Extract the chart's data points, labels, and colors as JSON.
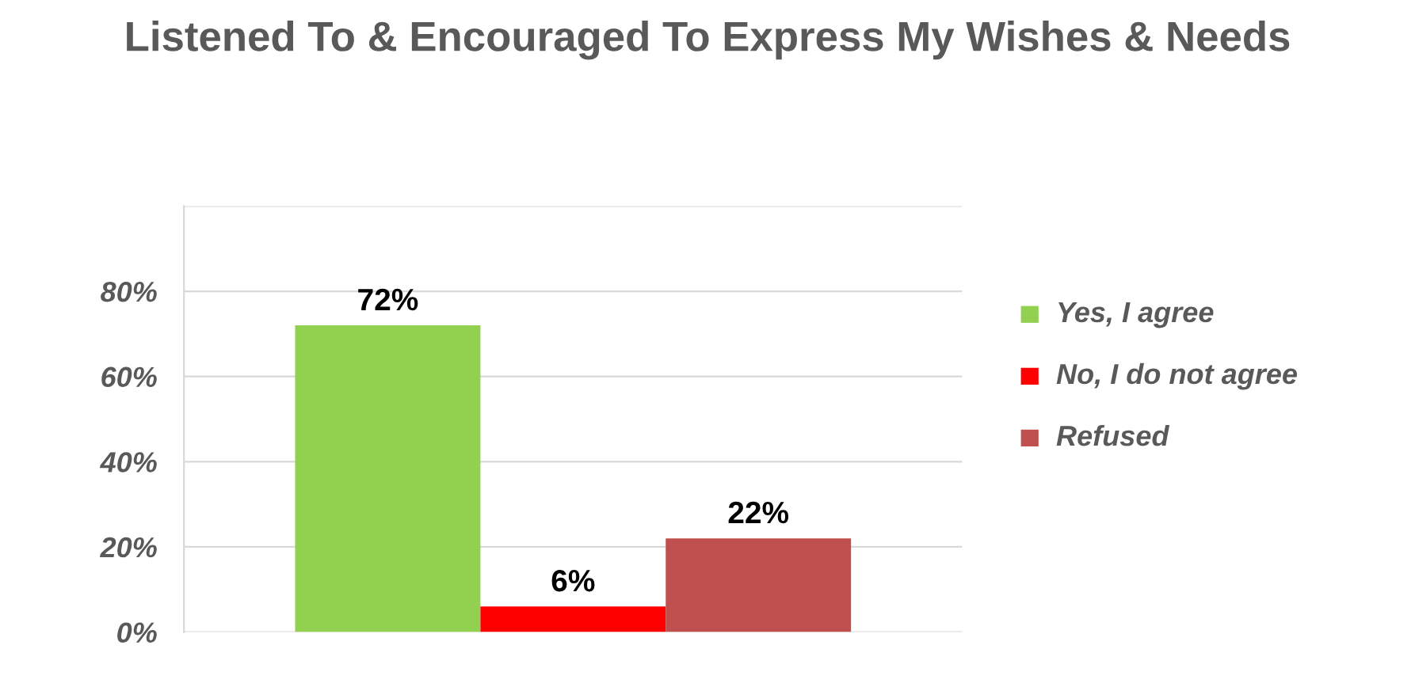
{
  "chart_data": {
    "type": "bar",
    "title": "Listened To & Encouraged To Express My Wishes & Needs",
    "categories": [
      null
    ],
    "series": [
      {
        "name": "Yes, I agree",
        "color": "#92d050",
        "values": [
          72
        ],
        "value_labels": [
          "72%"
        ]
      },
      {
        "name": "No, I do not agree",
        "color": "#ff0000",
        "values": [
          6
        ],
        "value_labels": [
          "6%"
        ]
      },
      {
        "name": "Refused",
        "color": "#c0504d",
        "values": [
          22
        ],
        "value_labels": [
          "22%"
        ]
      }
    ],
    "ylim": [
      0,
      100
    ],
    "yticks": [
      {
        "value": 0,
        "label": "0%"
      },
      {
        "value": 20,
        "label": "20%"
      },
      {
        "value": 40,
        "label": "40%"
      },
      {
        "value": 60,
        "label": "60%"
      },
      {
        "value": 80,
        "label": "80%"
      },
      {
        "value": 100,
        "label": null
      }
    ],
    "grid": "y",
    "legend": "right"
  }
}
